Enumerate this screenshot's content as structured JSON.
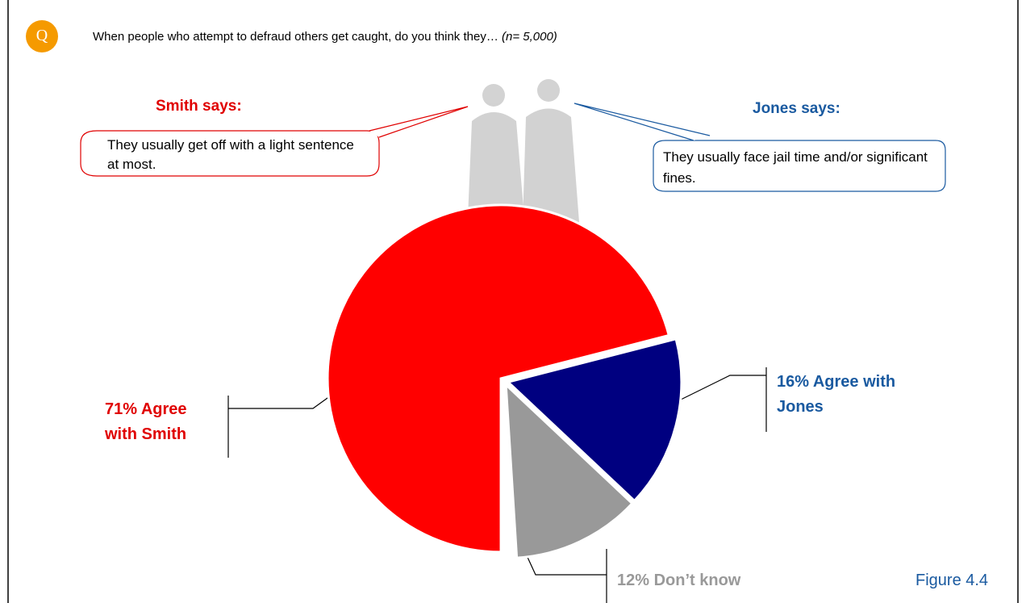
{
  "question_icon": "Q",
  "question": "When people who attempt to defraud others get caught, do you think they…",
  "sample_note": "(n= 5,000)",
  "smith": {
    "heading": "Smith says:",
    "quote": "They usually get off with a light sentence at most."
  },
  "jones": {
    "heading": "Jones says:",
    "quote": "They usually face jail time and/or significant fines."
  },
  "figure_label": "Figure 4.4",
  "chart_data": {
    "type": "pie",
    "values": [
      71,
      16,
      12
    ],
    "value_labels": [
      "71% Agree with Smith",
      "16% Agree with Jones",
      "12% Don’t know"
    ],
    "colors": [
      "#ff0000",
      "#000080",
      "#999999"
    ]
  }
}
